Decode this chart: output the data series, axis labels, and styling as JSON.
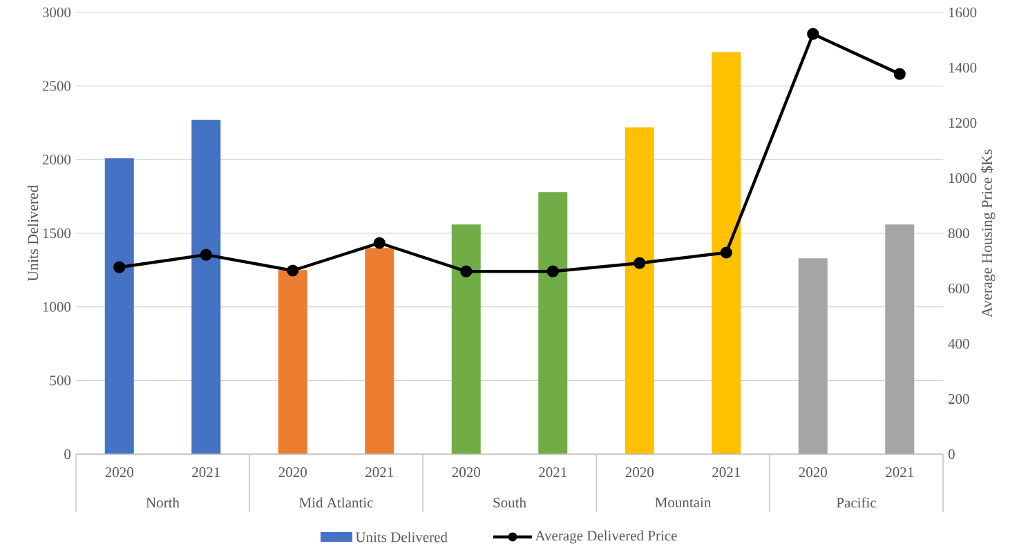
{
  "chart_data": {
    "type": "bar",
    "categories": [
      "2020",
      "2021",
      "2020",
      "2021",
      "2020",
      "2021",
      "2020",
      "2021",
      "2020",
      "2021"
    ],
    "annotations": [
      "North",
      "Mid Atlantic",
      "South",
      "Mountain",
      "Pacific"
    ],
    "series": [
      {
        "name": "Units Delivered",
        "color": "#4472c4",
        "colors": [
          "#4472c4",
          "#4472c4",
          "#ed7d31",
          "#ed7d31",
          "#70ad47",
          "#70ad47",
          "#ffc000",
          "#ffc000",
          "#a5a5a5",
          "#a5a5a5"
        ],
        "values": [
          2010,
          2270,
          1250,
          1400,
          1560,
          1780,
          2220,
          2730,
          1330,
          1560
        ]
      },
      {
        "name": "Average Delivered Price",
        "type": "line",
        "axis": "y2",
        "color": "#000000",
        "marker": "circle",
        "values": [
          677,
          722,
          665,
          765,
          662,
          662,
          692,
          730,
          1522,
          1377
        ]
      }
    ],
    "ylabel": "Units Delivered",
    "y2label": "Average Housing Price $Ks",
    "ylim": [
      0,
      3000
    ],
    "yticks": [
      0,
      500,
      1000,
      1500,
      2000,
      2500,
      3000
    ],
    "y2lim": [
      0,
      1600
    ],
    "y2ticks": [
      0,
      200,
      400,
      600,
      800,
      1000,
      1200,
      1400,
      1600
    ],
    "grid": "y",
    "legend": "bottom"
  }
}
